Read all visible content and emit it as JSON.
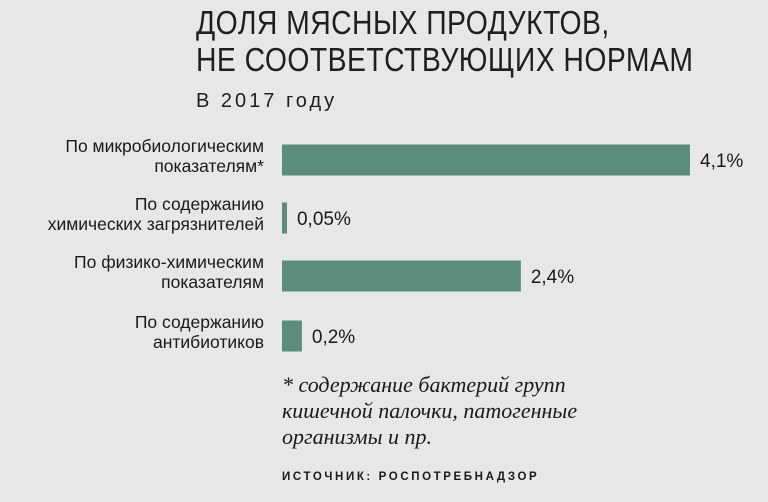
{
  "header": {
    "title_line1": "ДОЛЯ МЯСНЫХ ПРОДУКТОВ,",
    "title_line2": "НЕ СООТВЕТСТВУЮЩИХ НОРМАМ",
    "subtitle": "В 2017 году"
  },
  "chart_data": {
    "type": "bar",
    "orientation": "horizontal",
    "categories": [
      [
        "По микробиологическим",
        "показателям*"
      ],
      [
        "По содержанию",
        "химических загрязнителей"
      ],
      [
        "По физико-химическим",
        "показателям"
      ],
      [
        "По содержанию",
        "антибиотиков"
      ]
    ],
    "values": [
      4.1,
      0.05,
      2.4,
      0.2
    ],
    "value_labels": [
      "4,1%",
      "0,05%",
      "2,4%",
      "0,2%"
    ],
    "unit": "%",
    "bar_color": "#5b8c7c",
    "grid": false,
    "legend": "none"
  },
  "footnote": {
    "line1": "* содержание бактерий групп",
    "line2": "кишечной палочки, патогенные",
    "line3": "организмы и пр."
  },
  "source": "ИСТОЧНИК: РОСПОТРЕБНАДЗОР",
  "colors": {
    "background": "#e6e7e6",
    "bar": "#5b8c7c",
    "text": "#1a1a1a"
  }
}
